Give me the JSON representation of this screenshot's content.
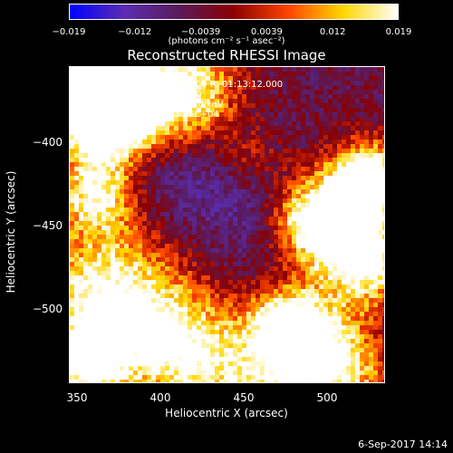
{
  "colorbar": {
    "colors": [
      "#0000ff",
      "#5a2db0",
      "#5a1a5a",
      "#8b0000",
      "#ff4500",
      "#ffd700",
      "#ffffff"
    ],
    "tick_labels": [
      "−0.019",
      "−0.012",
      "−0.0039",
      "0.0039",
      "0.012",
      "0.019"
    ],
    "unit_label": "(photons cm⁻² s⁻¹ asec⁻²)"
  },
  "title": "Reconstructed RHESSI Image",
  "info": {
    "line1": "29-Sep-2015 01:03:12.000 to 01:13:12.000",
    "line2": "Detectors: 1F 5F 7F, Att 0",
    "line3": "Energy Range: 25.0 - 50.0 keV",
    "line4": "Clean    Total counts: 3.96E+04",
    "peak": "Position of Peak:  [458,-363]"
  },
  "axes": {
    "x_label": "Heliocentric X (arcsec)",
    "y_label": "Heliocentric Y (arcsec)",
    "x_ticks": [
      "350",
      "400",
      "450",
      "500"
    ],
    "y_ticks": [
      "−400",
      "−450",
      "−500"
    ]
  },
  "footer": "6-Sep-2017 14:14"
}
